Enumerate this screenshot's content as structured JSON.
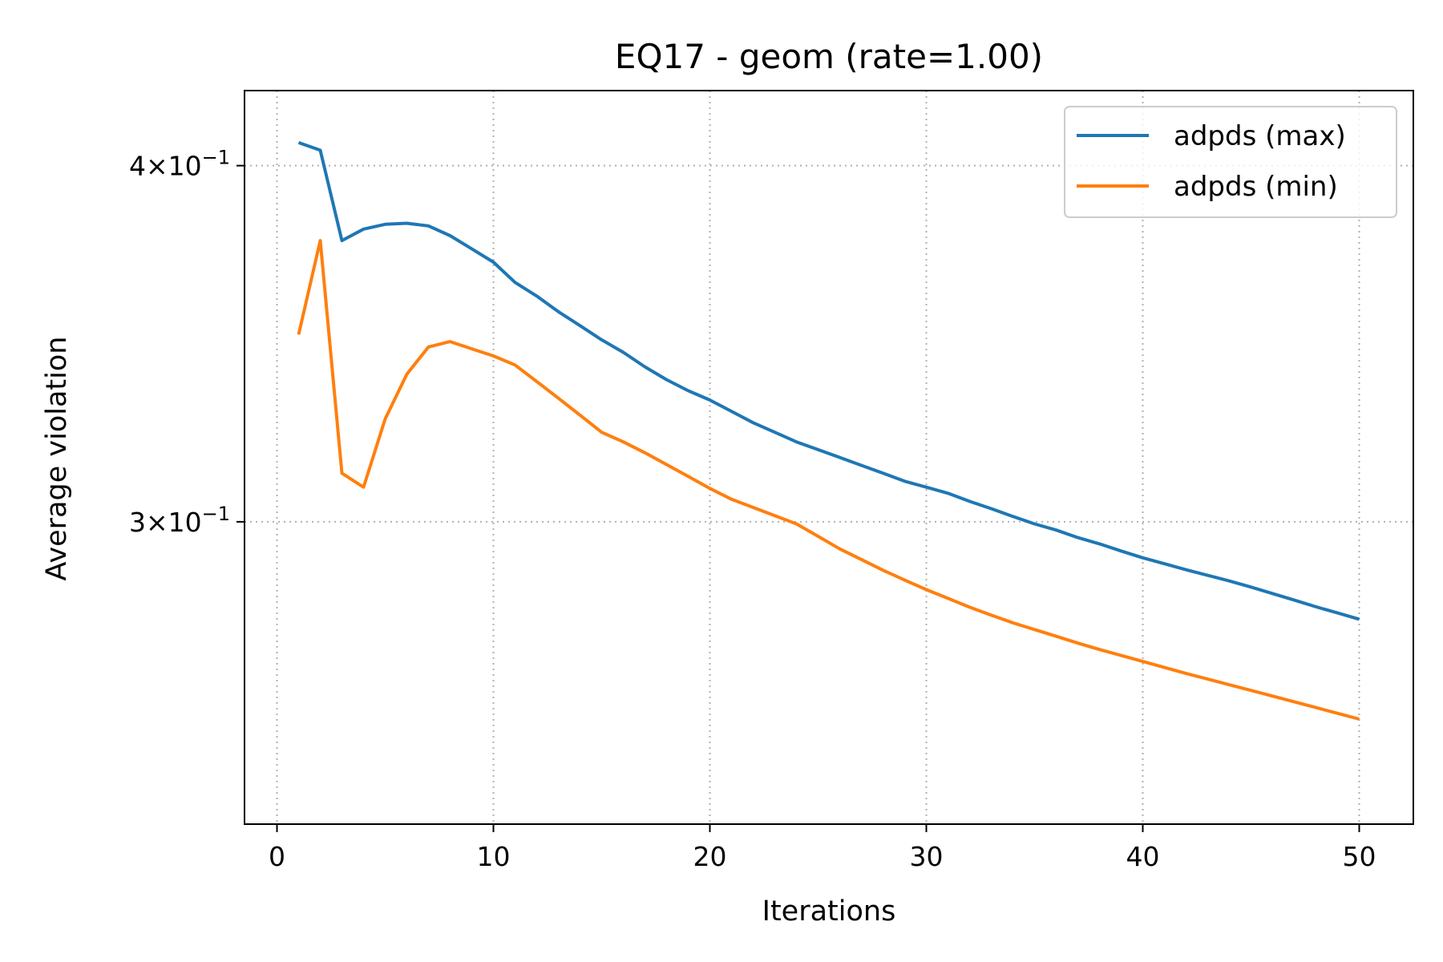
{
  "chart_data": {
    "type": "line",
    "title": "EQ17 - geom (rate=1.00)",
    "xlabel": "Iterations",
    "ylabel": "Average violation",
    "xlim": [
      -1.5,
      52.5
    ],
    "ylim": [
      0.235,
      0.425
    ],
    "yscale": "log",
    "grid": true,
    "legend_position": "top-right",
    "x_ticks": [
      0,
      10,
      20,
      30,
      40,
      50
    ],
    "x_tick_labels": [
      "0",
      "10",
      "20",
      "30",
      "40",
      "50"
    ],
    "y_ticks": [
      0.3,
      0.4
    ],
    "y_tick_labels": [
      {
        "mantissa": "3",
        "times": "×",
        "base": "10",
        "exponent": "−1"
      },
      {
        "mantissa": "4",
        "times": "×",
        "base": "10",
        "exponent": "−1"
      }
    ],
    "x": [
      1,
      2,
      3,
      4,
      5,
      6,
      7,
      8,
      9,
      10,
      11,
      12,
      13,
      14,
      15,
      16,
      17,
      18,
      19,
      20,
      21,
      22,
      23,
      24,
      25,
      26,
      27,
      28,
      29,
      30,
      31,
      32,
      33,
      34,
      35,
      36,
      37,
      38,
      39,
      40,
      41,
      42,
      43,
      44,
      45,
      46,
      47,
      48,
      49,
      50
    ],
    "series": [
      {
        "name": "adpds (max)",
        "color": "#1f77b4",
        "values": [
          0.4075,
          0.405,
          0.3765,
          0.38,
          0.3815,
          0.3818,
          0.381,
          0.378,
          0.374,
          0.37,
          0.364,
          0.36,
          0.3555,
          0.3515,
          0.3475,
          0.344,
          0.34,
          0.3365,
          0.3335,
          0.331,
          0.328,
          0.325,
          0.3225,
          0.32,
          0.318,
          0.316,
          0.314,
          0.312,
          0.31,
          0.3085,
          0.307,
          0.305,
          0.3032,
          0.3013,
          0.2995,
          0.298,
          0.2962,
          0.2947,
          0.293,
          0.2914,
          0.29,
          0.2886,
          0.2873,
          0.286,
          0.2846,
          0.2831,
          0.2816,
          0.2801,
          0.2787,
          0.2773
        ]
      },
      {
        "name": "adpds (min)",
        "color": "#ff7f0e",
        "values": [
          0.349,
          0.3765,
          0.312,
          0.3085,
          0.326,
          0.338,
          0.3455,
          0.347,
          0.345,
          0.343,
          0.3405,
          0.336,
          0.3315,
          0.327,
          0.3225,
          0.32,
          0.3172,
          0.3142,
          0.3112,
          0.3082,
          0.3055,
          0.3035,
          0.3015,
          0.2995,
          0.2965,
          0.2935,
          0.291,
          0.2885,
          0.2862,
          0.284,
          0.282,
          0.28,
          0.2782,
          0.2765,
          0.275,
          0.2735,
          0.272,
          0.2706,
          0.2693,
          0.268,
          0.2667,
          0.2654,
          0.2642,
          0.263,
          0.2618,
          0.2606,
          0.2594,
          0.2582,
          0.257,
          0.2558
        ]
      }
    ]
  }
}
